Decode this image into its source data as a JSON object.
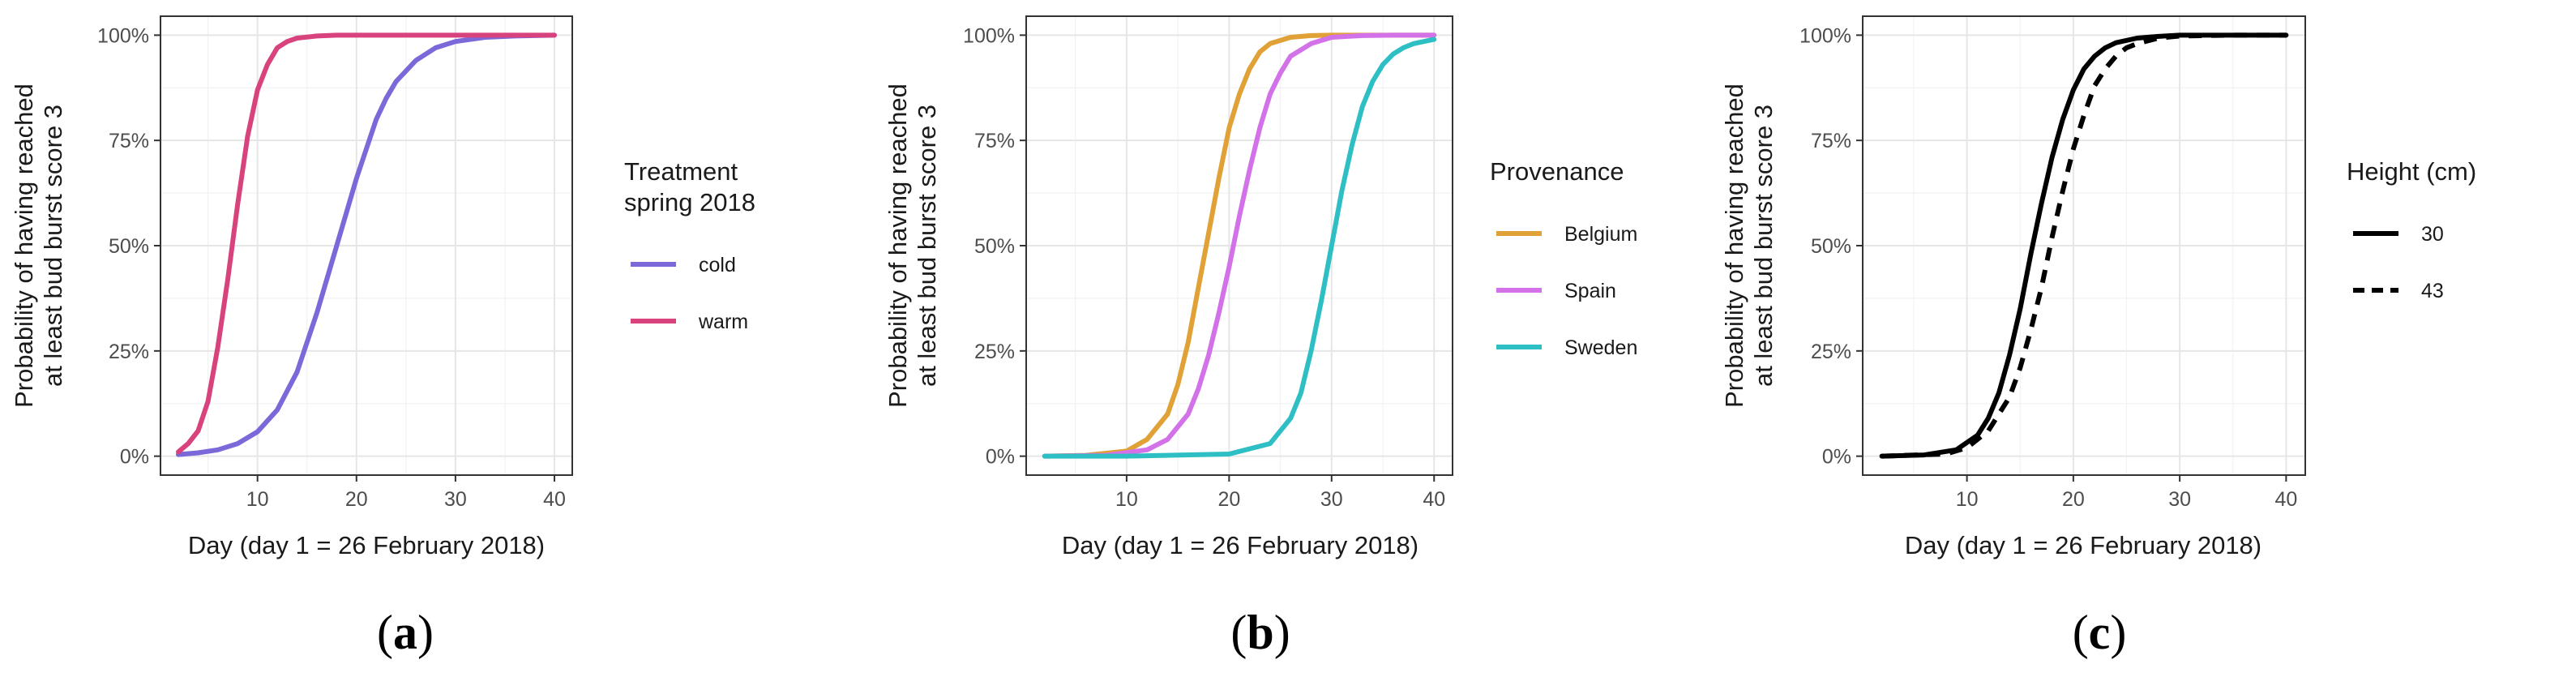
{
  "figure": {
    "panel_labels": [
      {
        "open": "(",
        "letter": "a",
        "close": ")"
      },
      {
        "open": "(",
        "letter": "b",
        "close": ")"
      },
      {
        "open": "(",
        "letter": "c",
        "close": ")"
      }
    ]
  },
  "chart_data": [
    {
      "type": "line",
      "panel": "a",
      "title": "",
      "xlabel": "Day (day 1 = 26 February 2018)",
      "ylabel": [
        "Probability of having reached",
        "at least bud burst score 3"
      ],
      "xlim": [
        0.2,
        41.8
      ],
      "ylim": [
        -0.045,
        1.045
      ],
      "xticks": [
        10,
        20,
        30,
        40
      ],
      "xtick_labels": [
        "10",
        "20",
        "30",
        "40"
      ],
      "yticks": [
        0,
        0.25,
        0.5,
        0.75,
        1
      ],
      "ytick_labels": [
        "0%",
        "25%",
        "50%",
        "75%",
        "100%"
      ],
      "grid": true,
      "legend": {
        "title": [
          "Treatment",
          "spring 2018"
        ],
        "position": "right",
        "entries": [
          {
            "label": "cold",
            "color": "#7b68d9",
            "dash": "solid"
          },
          {
            "label": "warm",
            "color": "#d8437e",
            "dash": "solid"
          }
        ]
      },
      "series": [
        {
          "name": "cold",
          "color": "#7b68d9",
          "dash": "solid",
          "x": [
            2,
            4,
            6,
            8,
            10,
            12,
            14,
            15,
            16,
            17,
            18,
            19,
            20,
            21,
            22,
            23,
            24,
            26,
            28,
            30,
            33,
            36,
            40
          ],
          "y": [
            0.004,
            0.008,
            0.015,
            0.03,
            0.058,
            0.11,
            0.2,
            0.27,
            0.34,
            0.42,
            0.5,
            0.58,
            0.66,
            0.73,
            0.8,
            0.85,
            0.89,
            0.94,
            0.97,
            0.985,
            0.995,
            0.998,
            1.0
          ]
        },
        {
          "name": "warm",
          "color": "#d8437e",
          "dash": "solid",
          "x": [
            2,
            3,
            4,
            5,
            6,
            7,
            8,
            9,
            10,
            11,
            12,
            13,
            14,
            16,
            18,
            20,
            25,
            30,
            40
          ],
          "y": [
            0.01,
            0.03,
            0.06,
            0.13,
            0.26,
            0.42,
            0.6,
            0.76,
            0.87,
            0.93,
            0.97,
            0.985,
            0.993,
            0.998,
            1.0,
            1.0,
            1.0,
            1.0,
            1.0
          ]
        }
      ]
    },
    {
      "type": "line",
      "panel": "b",
      "title": "",
      "xlabel": "Day (day 1 = 26 February 2018)",
      "ylabel": [
        "Probability of having reached",
        "at least bud burst score 3"
      ],
      "xlim": [
        0.2,
        41.8
      ],
      "ylim": [
        -0.045,
        1.045
      ],
      "xticks": [
        10,
        20,
        30,
        40
      ],
      "xtick_labels": [
        "10",
        "20",
        "30",
        "40"
      ],
      "yticks": [
        0,
        0.25,
        0.5,
        0.75,
        1
      ],
      "ytick_labels": [
        "0%",
        "25%",
        "50%",
        "75%",
        "100%"
      ],
      "grid": true,
      "legend": {
        "title": [
          "Provenance"
        ],
        "position": "right",
        "entries": [
          {
            "label": "Belgium",
            "color": "#e0a136",
            "dash": "solid"
          },
          {
            "label": "Spain",
            "color": "#d372e8",
            "dash": "solid"
          },
          {
            "label": "Sweden",
            "color": "#2dbfc4",
            "dash": "solid"
          }
        ]
      },
      "series": [
        {
          "name": "Belgium",
          "color": "#e0a136",
          "dash": "solid",
          "x": [
            2,
            6,
            10,
            12,
            14,
            15,
            16,
            17,
            18,
            19,
            20,
            21,
            22,
            23,
            24,
            26,
            28,
            30,
            35,
            40
          ],
          "y": [
            0.0,
            0.002,
            0.012,
            0.04,
            0.1,
            0.17,
            0.27,
            0.4,
            0.53,
            0.66,
            0.78,
            0.86,
            0.92,
            0.96,
            0.98,
            0.995,
            0.999,
            1.0,
            1.0,
            1.0
          ]
        },
        {
          "name": "Spain",
          "color": "#d372e8",
          "dash": "solid",
          "x": [
            2,
            8,
            12,
            14,
            16,
            17,
            18,
            19,
            20,
            21,
            22,
            23,
            24,
            25,
            26,
            28,
            30,
            33,
            36,
            40
          ],
          "y": [
            0.0,
            0.002,
            0.015,
            0.04,
            0.1,
            0.16,
            0.24,
            0.34,
            0.45,
            0.57,
            0.68,
            0.78,
            0.86,
            0.91,
            0.95,
            0.98,
            0.995,
            0.999,
            1.0,
            1.0
          ]
        },
        {
          "name": "Sweden",
          "color": "#2dbfc4",
          "dash": "solid",
          "x": [
            2,
            10,
            20,
            24,
            26,
            27,
            28,
            29,
            30,
            31,
            32,
            33,
            34,
            35,
            36,
            37,
            38,
            40
          ],
          "y": [
            0.0,
            0.0,
            0.005,
            0.03,
            0.09,
            0.15,
            0.25,
            0.37,
            0.5,
            0.63,
            0.74,
            0.83,
            0.89,
            0.93,
            0.955,
            0.97,
            0.98,
            0.99
          ]
        }
      ]
    },
    {
      "type": "line",
      "panel": "c",
      "title": "",
      "xlabel": "Day (day 1 = 26 February 2018)",
      "ylabel": [
        "Probability of having reached",
        "at least bud burst score 3"
      ],
      "xlim": [
        0.2,
        41.8
      ],
      "ylim": [
        -0.045,
        1.045
      ],
      "xticks": [
        10,
        20,
        30,
        40
      ],
      "xtick_labels": [
        "10",
        "20",
        "30",
        "40"
      ],
      "yticks": [
        0,
        0.25,
        0.5,
        0.75,
        1
      ],
      "ytick_labels": [
        "0%",
        "25%",
        "50%",
        "75%",
        "100%"
      ],
      "grid": true,
      "legend": {
        "title": [
          "Height (cm)"
        ],
        "position": "right",
        "entries": [
          {
            "label": "30",
            "color": "#000000",
            "dash": "solid"
          },
          {
            "label": "43",
            "color": "#000000",
            "dash": "dashed"
          }
        ]
      },
      "series": [
        {
          "name": "30",
          "color": "#000000",
          "dash": "solid",
          "x": [
            2,
            6,
            9,
            11,
            12,
            13,
            14,
            15,
            16,
            17,
            18,
            19,
            20,
            21,
            22,
            23,
            24,
            26,
            28,
            30,
            35,
            40
          ],
          "y": [
            0.0,
            0.003,
            0.015,
            0.05,
            0.09,
            0.15,
            0.24,
            0.35,
            0.48,
            0.6,
            0.71,
            0.8,
            0.87,
            0.92,
            0.95,
            0.97,
            0.982,
            0.993,
            0.997,
            1.0,
            1.0,
            1.0
          ]
        },
        {
          "name": "43",
          "color": "#000000",
          "dash": "dashed",
          "x": [
            2,
            8,
            10,
            12,
            14,
            15,
            16,
            17,
            18,
            19,
            20,
            21,
            22,
            23,
            24,
            25,
            26,
            28,
            30,
            35,
            40
          ],
          "y": [
            0.0,
            0.005,
            0.02,
            0.06,
            0.14,
            0.21,
            0.3,
            0.4,
            0.52,
            0.63,
            0.73,
            0.81,
            0.88,
            0.92,
            0.95,
            0.97,
            0.98,
            0.993,
            0.998,
            1.0,
            1.0
          ]
        }
      ]
    }
  ]
}
